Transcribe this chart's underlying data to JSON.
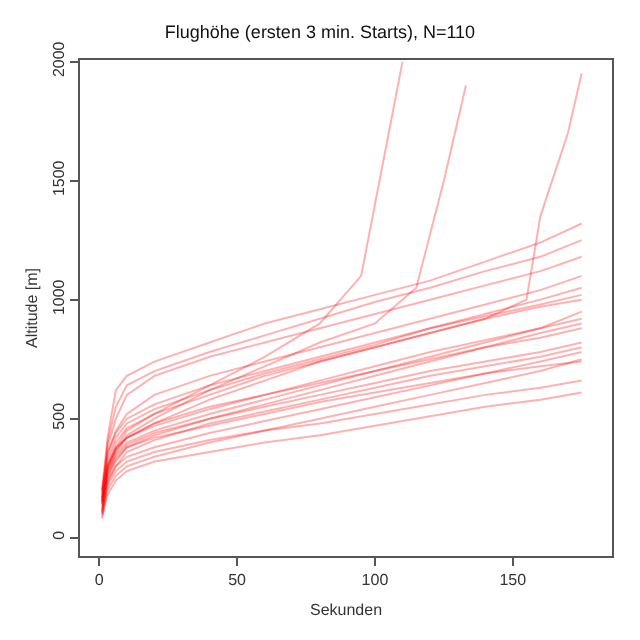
{
  "chart_data": {
    "type": "line",
    "title": "Flughöhe (ersten 3 min. Starts), N=110",
    "xlabel": "Sekunden",
    "ylabel": "Altitude [m]",
    "x": [
      1,
      3,
      6,
      10,
      20,
      40,
      60,
      80,
      100,
      120,
      140,
      160,
      175
    ],
    "xlim": [
      -7,
      186
    ],
    "ylim": [
      -77,
      2007
    ],
    "xticks": [
      0,
      50,
      100,
      150
    ],
    "yticks": [
      0,
      500,
      1000,
      1500,
      2000
    ],
    "marker": "none",
    "line_style": "solid",
    "series": [
      {
        "color": "#ff0000",
        "values": [
          100,
          250,
          320,
          380,
          430,
          500,
          560,
          620,
          680,
          740,
          800,
          860,
          900
        ]
      },
      {
        "color": "#ff0000",
        "values": [
          150,
          300,
          380,
          420,
          480,
          550,
          600,
          660,
          720,
          780,
          830,
          880,
          950
        ]
      },
      {
        "color": "#ff0000",
        "values": [
          80,
          200,
          260,
          300,
          340,
          400,
          450,
          500,
          550,
          600,
          650,
          700,
          750
        ]
      },
      {
        "color": "#ff0000",
        "values": [
          120,
          220,
          280,
          320,
          360,
          410,
          450,
          480,
          520,
          560,
          600,
          630,
          660
        ]
      },
      {
        "color": "#ff0000",
        "values": [
          200,
          350,
          450,
          520,
          600,
          680,
          740,
          800,
          860,
          920,
          980,
          1040,
          1100
        ]
      },
      {
        "color": "#ff0000",
        "values": [
          180,
          400,
          550,
          640,
          700,
          780,
          850,
          920,
          990,
          1050,
          1120,
          1180,
          1250
        ]
      },
      {
        "color": "#ff0000",
        "values": [
          160,
          380,
          500,
          600,
          680,
          760,
          820,
          880,
          940,
          1000,
          1060,
          1120,
          1180
        ]
      },
      {
        "color": "#ff0000",
        "values": [
          90,
          180,
          240,
          280,
          320,
          360,
          400,
          430,
          470,
          510,
          550,
          580,
          610
        ]
      },
      {
        "color": "#ff0000",
        "values": [
          140,
          280,
          350,
          400,
          450,
          520,
          580,
          640,
          700,
          760,
          820,
          880,
          920
        ]
      },
      {
        "color": "#ff0000",
        "values": [
          170,
          330,
          420,
          480,
          540,
          620,
          690,
          750,
          810,
          880,
          940,
          1000,
          1050
        ]
      },
      {
        "color": "#ff0000",
        "values": [
          200,
          420,
          620,
          680,
          740,
          820,
          900,
          960,
          1020,
          1080,
          1160,
          1240,
          1320
        ]
      },
      {
        "color": "#ff0000",
        "values": [
          110,
          260,
          340,
          390,
          440,
          500,
          550,
          600,
          650,
          700,
          740,
          780,
          820
        ]
      },
      {
        "color": "#ff0000",
        "values": [
          170,
          240,
          300,
          340,
          380,
          440,
          490,
          540,
          590,
          640,
          690,
          740,
          780
        ]
      },
      {
        "color": "#ff0000",
        "values": [
          190,
          360,
          440,
          500,
          560,
          640,
          700,
          760,
          820,
          880,
          930,
          980,
          1020
        ]
      },
      {
        "color": "#ff0000",
        "values": [
          100,
          230,
          300,
          360,
          410,
          480,
          530,
          580,
          630,
          680,
          720,
          760,
          800
        ]
      },
      {
        "color": "#ff0000",
        "values": [
          150,
          310,
          400,
          460,
          520,
          600,
          680,
          740,
          800,
          860,
          920,
          970,
          1000
        ]
      },
      {
        "color": "#ff0000",
        "values": [
          110,
          270,
          330,
          380,
          420,
          470,
          520,
          570,
          610,
          650,
          690,
          720,
          740
        ]
      },
      {
        "color": "#ff0000",
        "values": [
          160,
          300,
          370,
          420,
          470,
          540,
          600,
          650,
          700,
          750,
          800,
          840,
          880
        ]
      },
      {
        "color": "#ff0000",
        "x": [
          1,
          3,
          6,
          10,
          20,
          40,
          60,
          80,
          95,
          100,
          105,
          110
        ],
        "values": [
          150,
          300,
          380,
          450,
          520,
          640,
          760,
          900,
          1100,
          1400,
          1700,
          2000
        ]
      },
      {
        "color": "#ff0000",
        "x": [
          1,
          3,
          6,
          10,
          20,
          40,
          60,
          80,
          100,
          115,
          125,
          133
        ],
        "values": [
          140,
          290,
          370,
          430,
          500,
          620,
          720,
          820,
          900,
          1050,
          1500,
          1900
        ]
      },
      {
        "color": "#ff0000",
        "x": [
          1,
          3,
          6,
          10,
          20,
          40,
          60,
          80,
          100,
          120,
          140,
          155,
          160,
          170,
          175
        ],
        "values": [
          130,
          280,
          360,
          420,
          480,
          580,
          660,
          740,
          800,
          860,
          920,
          1000,
          1350,
          1700,
          1950
        ]
      }
    ]
  }
}
